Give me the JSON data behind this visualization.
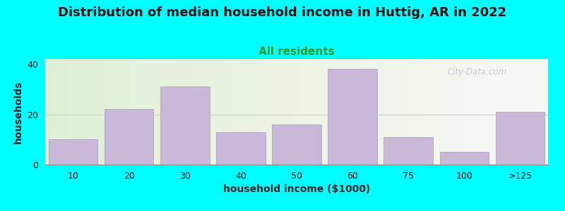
{
  "title": "Distribution of median household income in Huttig, AR in 2022",
  "subtitle": "All residents",
  "xlabel": "household income ($1000)",
  "ylabel": "households",
  "background_color": "#00FFFF",
  "bar_color": "#c9b8d8",
  "bar_edge_color": "#b0a0c8",
  "categories": [
    "10",
    "20",
    "30",
    "40",
    "50",
    "60",
    "75",
    "100",
    ">125"
  ],
  "values": [
    10,
    22,
    31,
    13,
    16,
    38,
    11,
    5,
    21
  ],
  "yticks": [
    0,
    20,
    40
  ],
  "ylim": [
    0,
    42
  ],
  "title_fontsize": 13,
  "subtitle_fontsize": 11,
  "axis_label_fontsize": 10,
  "tick_fontsize": 9,
  "watermark": "City-Data.com"
}
